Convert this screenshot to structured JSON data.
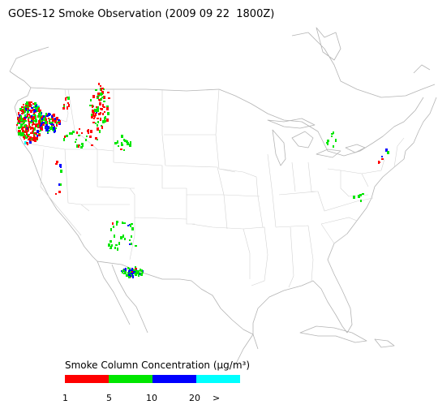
{
  "map": {
    "title": "GOES-12 Smoke Observation (2009 09 22  1800Z)"
  },
  "legend": {
    "title": "Smoke Column Concentration (μg/m³)",
    "colors": [
      "#ff0000",
      "#00e600",
      "#0000ff",
      "#00ffff"
    ],
    "labels": [
      "1",
      "5",
      "10",
      "20",
      ">"
    ]
  }
}
